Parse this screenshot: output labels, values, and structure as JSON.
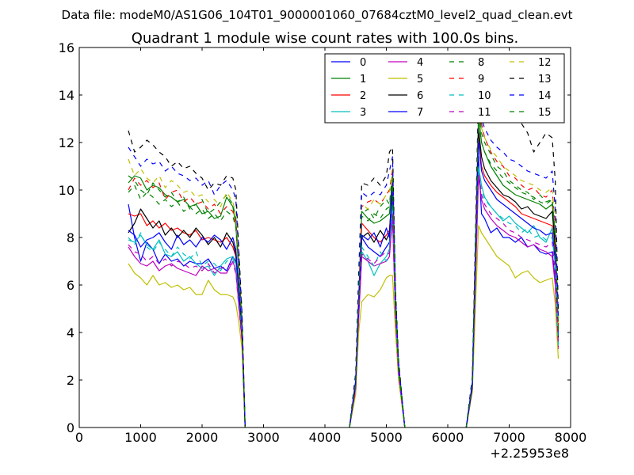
{
  "figure": {
    "suptitle": "Data file: modeM0/AS1G06_104T01_9000001060_07684cztM0_level2_quad_clean.evt"
  },
  "chart_data": {
    "type": "line",
    "title": "Quadrant 1 module wise count rates with 100.0s bins.",
    "xlabel": "",
    "ylabel": "",
    "xlim": [
      0,
      8000
    ],
    "ylim": [
      0,
      16
    ],
    "xticks": [
      0,
      1000,
      2000,
      3000,
      4000,
      5000,
      6000,
      7000,
      8000
    ],
    "xtick_labels": [
      "0",
      "1000",
      "2000",
      "3000",
      "4000",
      "5000",
      "6000",
      "7000",
      "8000"
    ],
    "yticks": [
      0,
      2,
      4,
      6,
      8,
      10,
      12,
      14,
      16
    ],
    "ytick_labels": [
      "0",
      "2",
      "4",
      "6",
      "8",
      "10",
      "12",
      "14",
      "16"
    ],
    "x_offset_label": "+2.25953e8",
    "grid": false,
    "legend_position": "top-right",
    "legend_columns": 4,
    "segment_x": [
      [
        800,
        900,
        1000,
        1100,
        1200,
        1300,
        1400,
        1500,
        1600,
        1700,
        1800,
        1900,
        2000,
        2100,
        2200,
        2300,
        2400,
        2500,
        2550,
        2600,
        2650,
        2700
      ],
      [
        4400,
        4500,
        4550,
        4600,
        4700,
        4800,
        4900,
        5000,
        5050,
        5100,
        5150,
        5200,
        5300
      ],
      [
        6300,
        6400,
        6500,
        6550,
        6600,
        6700,
        6800,
        6900,
        7000,
        7100,
        7200,
        7300,
        7400,
        7500,
        7600,
        7700,
        7750,
        7800
      ]
    ],
    "series": [
      {
        "name": "0",
        "color": "#0000ff",
        "dash": "solid",
        "segments": [
          [
            9.4,
            8.0,
            7.0,
            7.8,
            7.5,
            6.9,
            7.3,
            7.0,
            7.1,
            6.8,
            7.0,
            6.9,
            6.9,
            7.1,
            6.7,
            6.8,
            6.6,
            7.2,
            7.0,
            5.5,
            4.0,
            0
          ],
          [
            0,
            1.8,
            5.0,
            8.0,
            7.6,
            7.4,
            7.2,
            7.6,
            7.8,
            9.6,
            5.0,
            2.5,
            0
          ],
          [
            0,
            1.8,
            11.4,
            9.0,
            8.8,
            8.2,
            8.4,
            8.0,
            8.0,
            7.8,
            8.0,
            7.6,
            7.7,
            7.4,
            7.3,
            7.4,
            6.2,
            3.7
          ]
        ]
      },
      {
        "name": "1",
        "color": "#008000",
        "dash": "solid",
        "segments": [
          [
            10.3,
            10.6,
            10.5,
            10.0,
            10.2,
            10.1,
            9.8,
            9.7,
            9.5,
            9.6,
            9.3,
            9.4,
            9.0,
            9.1,
            8.8,
            8.9,
            9.7,
            9.3,
            8.5,
            6.5,
            4.3,
            0
          ],
          [
            0,
            2.0,
            5.5,
            9.1,
            8.8,
            8.6,
            8.7,
            8.9,
            9.0,
            10.5,
            5.2,
            2.5,
            0
          ],
          [
            0,
            1.9,
            13.2,
            12.0,
            11.6,
            11.0,
            10.6,
            10.2,
            10.0,
            9.8,
            9.7,
            9.6,
            9.5,
            9.4,
            9.2,
            9.4,
            8.0,
            4.1
          ]
        ]
      },
      {
        "name": "2",
        "color": "#ff0000",
        "dash": "solid",
        "segments": [
          [
            9.0,
            8.9,
            9.0,
            8.5,
            8.7,
            8.4,
            8.6,
            8.3,
            8.4,
            8.2,
            8.1,
            8.3,
            7.9,
            8.0,
            7.9,
            7.8,
            8.0,
            7.6,
            7.2,
            5.6,
            4.0,
            0
          ],
          [
            0,
            1.9,
            5.3,
            8.6,
            8.3,
            8.0,
            7.8,
            8.1,
            8.3,
            10.0,
            5.0,
            2.4,
            0
          ],
          [
            0,
            1.7,
            12.3,
            11.0,
            10.6,
            10.2,
            9.9,
            9.7,
            9.5,
            9.3,
            9.0,
            8.9,
            8.8,
            8.7,
            8.6,
            8.5,
            7.4,
            3.6
          ]
        ]
      },
      {
        "name": "3",
        "color": "#00bfbf",
        "dash": "solid",
        "segments": [
          [
            7.9,
            7.8,
            8.1,
            7.7,
            7.5,
            7.9,
            7.3,
            7.2,
            7.4,
            7.0,
            7.2,
            6.9,
            6.7,
            6.8,
            6.4,
            6.8,
            7.1,
            7.2,
            6.9,
            5.2,
            3.8,
            0
          ],
          [
            0,
            1.7,
            4.8,
            7.4,
            7.0,
            6.4,
            6.9,
            7.2,
            7.5,
            9.4,
            4.8,
            2.3,
            0
          ],
          [
            0,
            1.6,
            11.0,
            10.2,
            9.7,
            9.3,
            9.0,
            8.7,
            8.9,
            8.6,
            8.4,
            8.2,
            8.5,
            8.0,
            7.8,
            8.4,
            7.0,
            3.5
          ]
        ]
      },
      {
        "name": "4",
        "color": "#bf00bf",
        "dash": "solid",
        "segments": [
          [
            7.6,
            7.2,
            6.9,
            6.8,
            7.0,
            6.6,
            6.8,
            6.9,
            6.7,
            6.6,
            6.5,
            6.4,
            6.8,
            6.6,
            6.7,
            6.5,
            6.5,
            7.0,
            6.6,
            5.1,
            3.7,
            0
          ],
          [
            0,
            1.6,
            4.6,
            7.2,
            7.0,
            6.8,
            6.9,
            7.0,
            7.2,
            8.8,
            4.6,
            2.2,
            0
          ],
          [
            0,
            1.6,
            10.6,
            9.6,
            9.2,
            8.8,
            8.5,
            8.3,
            8.1,
            8.0,
            7.8,
            7.6,
            7.7,
            7.5,
            7.4,
            7.2,
            6.0,
            3.3
          ]
        ]
      },
      {
        "name": "5",
        "color": "#bfbf00",
        "dash": "solid",
        "segments": [
          [
            6.9,
            6.5,
            6.3,
            6.0,
            6.4,
            6.0,
            6.1,
            5.9,
            6.0,
            5.8,
            5.9,
            5.6,
            5.6,
            6.2,
            5.8,
            5.6,
            5.6,
            5.5,
            5.2,
            4.4,
            3.3,
            0
          ],
          [
            0,
            1.4,
            4.0,
            5.3,
            5.6,
            5.5,
            5.8,
            6.3,
            6.4,
            6.4,
            4.0,
            2.0,
            0
          ],
          [
            0,
            1.5,
            8.5,
            8.2,
            8.0,
            7.6,
            7.2,
            7.0,
            6.8,
            6.3,
            6.5,
            6.6,
            6.3,
            6.1,
            6.2,
            6.3,
            5.2,
            2.9
          ]
        ]
      },
      {
        "name": "6",
        "color": "#000000",
        "dash": "solid",
        "segments": [
          [
            8.2,
            8.6,
            9.2,
            8.8,
            8.4,
            8.7,
            8.1,
            8.4,
            8.0,
            8.3,
            8.0,
            8.4,
            8.1,
            7.7,
            8.0,
            7.6,
            8.2,
            7.8,
            7.3,
            5.7,
            4.0,
            0
          ],
          [
            0,
            1.8,
            5.2,
            8.0,
            8.2,
            7.8,
            8.3,
            7.9,
            8.2,
            10.3,
            5.1,
            2.4,
            0
          ],
          [
            0,
            1.7,
            12.6,
            11.4,
            10.9,
            10.4,
            10.1,
            9.8,
            9.7,
            9.5,
            9.2,
            9.3,
            9.0,
            8.9,
            8.8,
            9.1,
            7.6,
            3.8
          ]
        ]
      },
      {
        "name": "7",
        "color": "#0000ff",
        "dash": "solid",
        "segments": [
          [
            8.3,
            8.1,
            7.6,
            7.9,
            8.0,
            8.2,
            7.8,
            7.5,
            8.1,
            7.7,
            7.9,
            7.6,
            8.0,
            7.8,
            8.1,
            7.9,
            7.5,
            8.0,
            7.5,
            5.8,
            4.1,
            0
          ],
          [
            0,
            1.9,
            5.1,
            8.1,
            7.9,
            8.2,
            7.6,
            8.4,
            8.0,
            10.1,
            5.0,
            2.4,
            0
          ],
          [
            0,
            1.8,
            12.1,
            10.8,
            10.4,
            10.0,
            9.6,
            9.4,
            9.2,
            9.0,
            8.8,
            8.6,
            8.4,
            8.3,
            8.1,
            8.2,
            7.0,
            3.9
          ]
        ]
      },
      {
        "name": "8",
        "color": "#008000",
        "dash": "dash",
        "segments": [
          [
            10.6,
            10.4,
            10.0,
            9.8,
            10.3,
            10.0,
            9.7,
            9.9,
            9.5,
            9.7,
            9.2,
            9.4,
            9.6,
            9.0,
            9.2,
            9.5,
            9.8,
            9.4,
            8.8,
            6.7,
            4.4,
            0
          ],
          [
            0,
            2.0,
            5.8,
            9.0,
            9.2,
            8.8,
            9.3,
            9.6,
            9.4,
            10.7,
            5.3,
            2.6,
            0
          ],
          [
            0,
            1.9,
            13.8,
            12.4,
            12.0,
            11.5,
            11.0,
            10.8,
            10.4,
            10.2,
            10.0,
            9.9,
            9.6,
            9.8,
            9.5,
            9.6,
            8.2,
            4.2
          ]
        ]
      },
      {
        "name": "9",
        "color": "#ff0000",
        "dash": "dash",
        "segments": [
          [
            10.0,
            10.5,
            10.2,
            10.4,
            10.1,
            10.3,
            9.6,
            9.9,
            10.0,
            9.5,
            9.7,
            9.4,
            9.5,
            9.2,
            9.4,
            9.0,
            9.3,
            9.1,
            8.6,
            6.6,
            4.3,
            0
          ],
          [
            0,
            2.0,
            5.7,
            9.3,
            9.5,
            9.6,
            9.4,
            9.8,
            10.0,
            10.9,
            5.4,
            2.6,
            0
          ],
          [
            0,
            1.9,
            14.2,
            12.8,
            12.2,
            11.6,
            11.2,
            11.0,
            10.6,
            10.5,
            10.2,
            10.0,
            10.1,
            9.8,
            9.7,
            10.0,
            8.4,
            4.3
          ]
        ]
      },
      {
        "name": "10",
        "color": "#00bfbf",
        "dash": "dash",
        "segments": [
          [
            8.0,
            7.7,
            8.2,
            7.6,
            7.4,
            7.8,
            7.5,
            7.2,
            7.6,
            7.3,
            7.1,
            7.4,
            6.8,
            7.0,
            6.9,
            6.6,
            7.0,
            7.1,
            6.7,
            5.2,
            3.8,
            0
          ],
          [
            0,
            1.7,
            4.9,
            7.6,
            7.2,
            6.8,
            7.4,
            7.0,
            7.6,
            9.2,
            4.7,
            2.3,
            0
          ],
          [
            0,
            1.6,
            10.9,
            10.0,
            9.6,
            9.3,
            9.0,
            8.8,
            8.6,
            8.5,
            8.2,
            8.4,
            8.0,
            8.1,
            7.9,
            8.0,
            6.8,
            3.4
          ]
        ]
      },
      {
        "name": "11",
        "color": "#bf00bf",
        "dash": "dash",
        "segments": [
          [
            7.7,
            7.4,
            7.3,
            7.0,
            7.2,
            6.9,
            7.1,
            6.8,
            7.0,
            6.9,
            6.7,
            6.8,
            6.6,
            6.9,
            6.5,
            6.7,
            6.8,
            6.9,
            6.5,
            5.0,
            3.6,
            0
          ],
          [
            0,
            1.6,
            4.7,
            7.3,
            7.1,
            6.9,
            7.2,
            7.4,
            7.3,
            9.0,
            4.6,
            2.2,
            0
          ],
          [
            0,
            1.6,
            10.7,
            9.8,
            9.4,
            9.0,
            8.8,
            8.6,
            8.3,
            8.2,
            8.0,
            7.9,
            7.8,
            7.7,
            7.6,
            7.8,
            6.5,
            3.4
          ]
        ]
      },
      {
        "name": "12",
        "color": "#bfbf00",
        "dash": "dash",
        "segments": [
          [
            11.3,
            10.6,
            10.9,
            10.5,
            10.3,
            10.6,
            10.1,
            10.4,
            10.2,
            9.9,
            10.0,
            9.7,
            9.8,
            9.5,
            9.6,
            9.3,
            9.9,
            9.5,
            9.0,
            6.9,
            4.5,
            0
          ],
          [
            0,
            2.1,
            6.0,
            9.4,
            9.2,
            9.6,
            9.4,
            9.8,
            9.9,
            10.8,
            5.4,
            2.6,
            0
          ],
          [
            0,
            2.0,
            13.5,
            12.6,
            12.2,
            11.7,
            11.4,
            11.0,
            10.8,
            10.6,
            10.4,
            10.3,
            10.2,
            10.0,
            9.9,
            10.1,
            8.6,
            4.4
          ]
        ]
      },
      {
        "name": "13",
        "color": "#000000",
        "dash": "dash",
        "segments": [
          [
            12.5,
            11.6,
            11.8,
            12.1,
            11.9,
            11.6,
            11.4,
            11.0,
            11.2,
            10.9,
            11.0,
            10.7,
            10.5,
            10.0,
            10.3,
            10.2,
            10.6,
            10.5,
            10.0,
            7.4,
            4.8,
            0
          ],
          [
            0,
            2.3,
            6.5,
            10.3,
            10.2,
            10.5,
            10.2,
            10.6,
            11.6,
            11.8,
            5.8,
            2.8,
            0
          ],
          [
            0,
            2.1,
            14.0,
            14.3,
            14.1,
            13.6,
            13.4,
            13.2,
            13.0,
            13.1,
            12.8,
            12.4,
            11.6,
            12.0,
            12.4,
            12.2,
            10.4,
            5.0
          ]
        ]
      },
      {
        "name": "14",
        "color": "#0000ff",
        "dash": "dash",
        "segments": [
          [
            11.8,
            11.4,
            11.0,
            11.3,
            11.1,
            11.2,
            10.8,
            11.0,
            10.7,
            10.6,
            10.4,
            10.5,
            10.2,
            10.4,
            9.8,
            10.2,
            10.4,
            10.0,
            9.6,
            7.2,
            4.7,
            0
          ],
          [
            0,
            2.2,
            6.3,
            9.9,
            9.7,
            9.9,
            9.8,
            10.2,
            10.8,
            11.4,
            5.6,
            2.7,
            0
          ],
          [
            0,
            2.1,
            13.4,
            13.0,
            12.6,
            12.1,
            11.8,
            11.6,
            11.3,
            11.2,
            11.0,
            10.8,
            10.7,
            10.6,
            10.5,
            10.8,
            9.2,
            4.6
          ]
        ]
      },
      {
        "name": "15",
        "color": "#008000",
        "dash": "dash",
        "segments": [
          [
            9.9,
            10.2,
            9.6,
            9.9,
            9.7,
            9.4,
            9.6,
            9.3,
            9.5,
            9.1,
            9.3,
            9.0,
            9.2,
            8.8,
            9.0,
            8.7,
            9.1,
            8.9,
            8.4,
            6.4,
            4.2,
            0
          ],
          [
            0,
            1.9,
            5.6,
            8.9,
            8.7,
            9.0,
            8.8,
            9.2,
            9.3,
            10.4,
            5.2,
            2.5,
            0
          ],
          [
            0,
            1.8,
            13.0,
            12.0,
            11.6,
            11.1,
            10.8,
            10.5,
            10.3,
            10.1,
            9.9,
            9.8,
            9.7,
            9.5,
            9.4,
            9.6,
            8.1,
            4.1
          ]
        ]
      }
    ]
  }
}
